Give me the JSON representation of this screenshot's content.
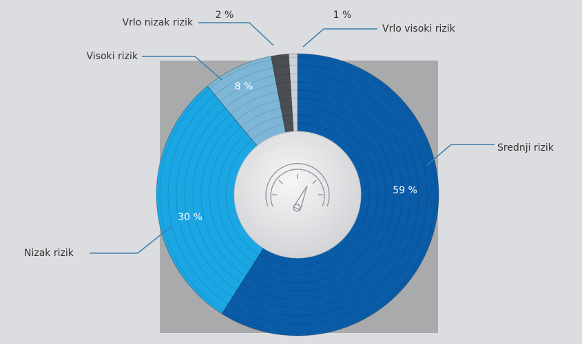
{
  "chart_data": {
    "type": "pie",
    "categories": [
      "Srednji rizik",
      "Nizak rizik",
      "Visoki rizik",
      "Vrlo nizak rizik",
      "Vrlo visoki rizik"
    ],
    "values": [
      59,
      30,
      8,
      2,
      1
    ],
    "value_labels": [
      "59 %",
      "30 %",
      "8 %",
      "2 %",
      "1 %"
    ],
    "colors": [
      "#0a5ca8",
      "#1ba6e4",
      "#7db6d6",
      "#4b4e53",
      "#cdd0d4"
    ]
  }
}
